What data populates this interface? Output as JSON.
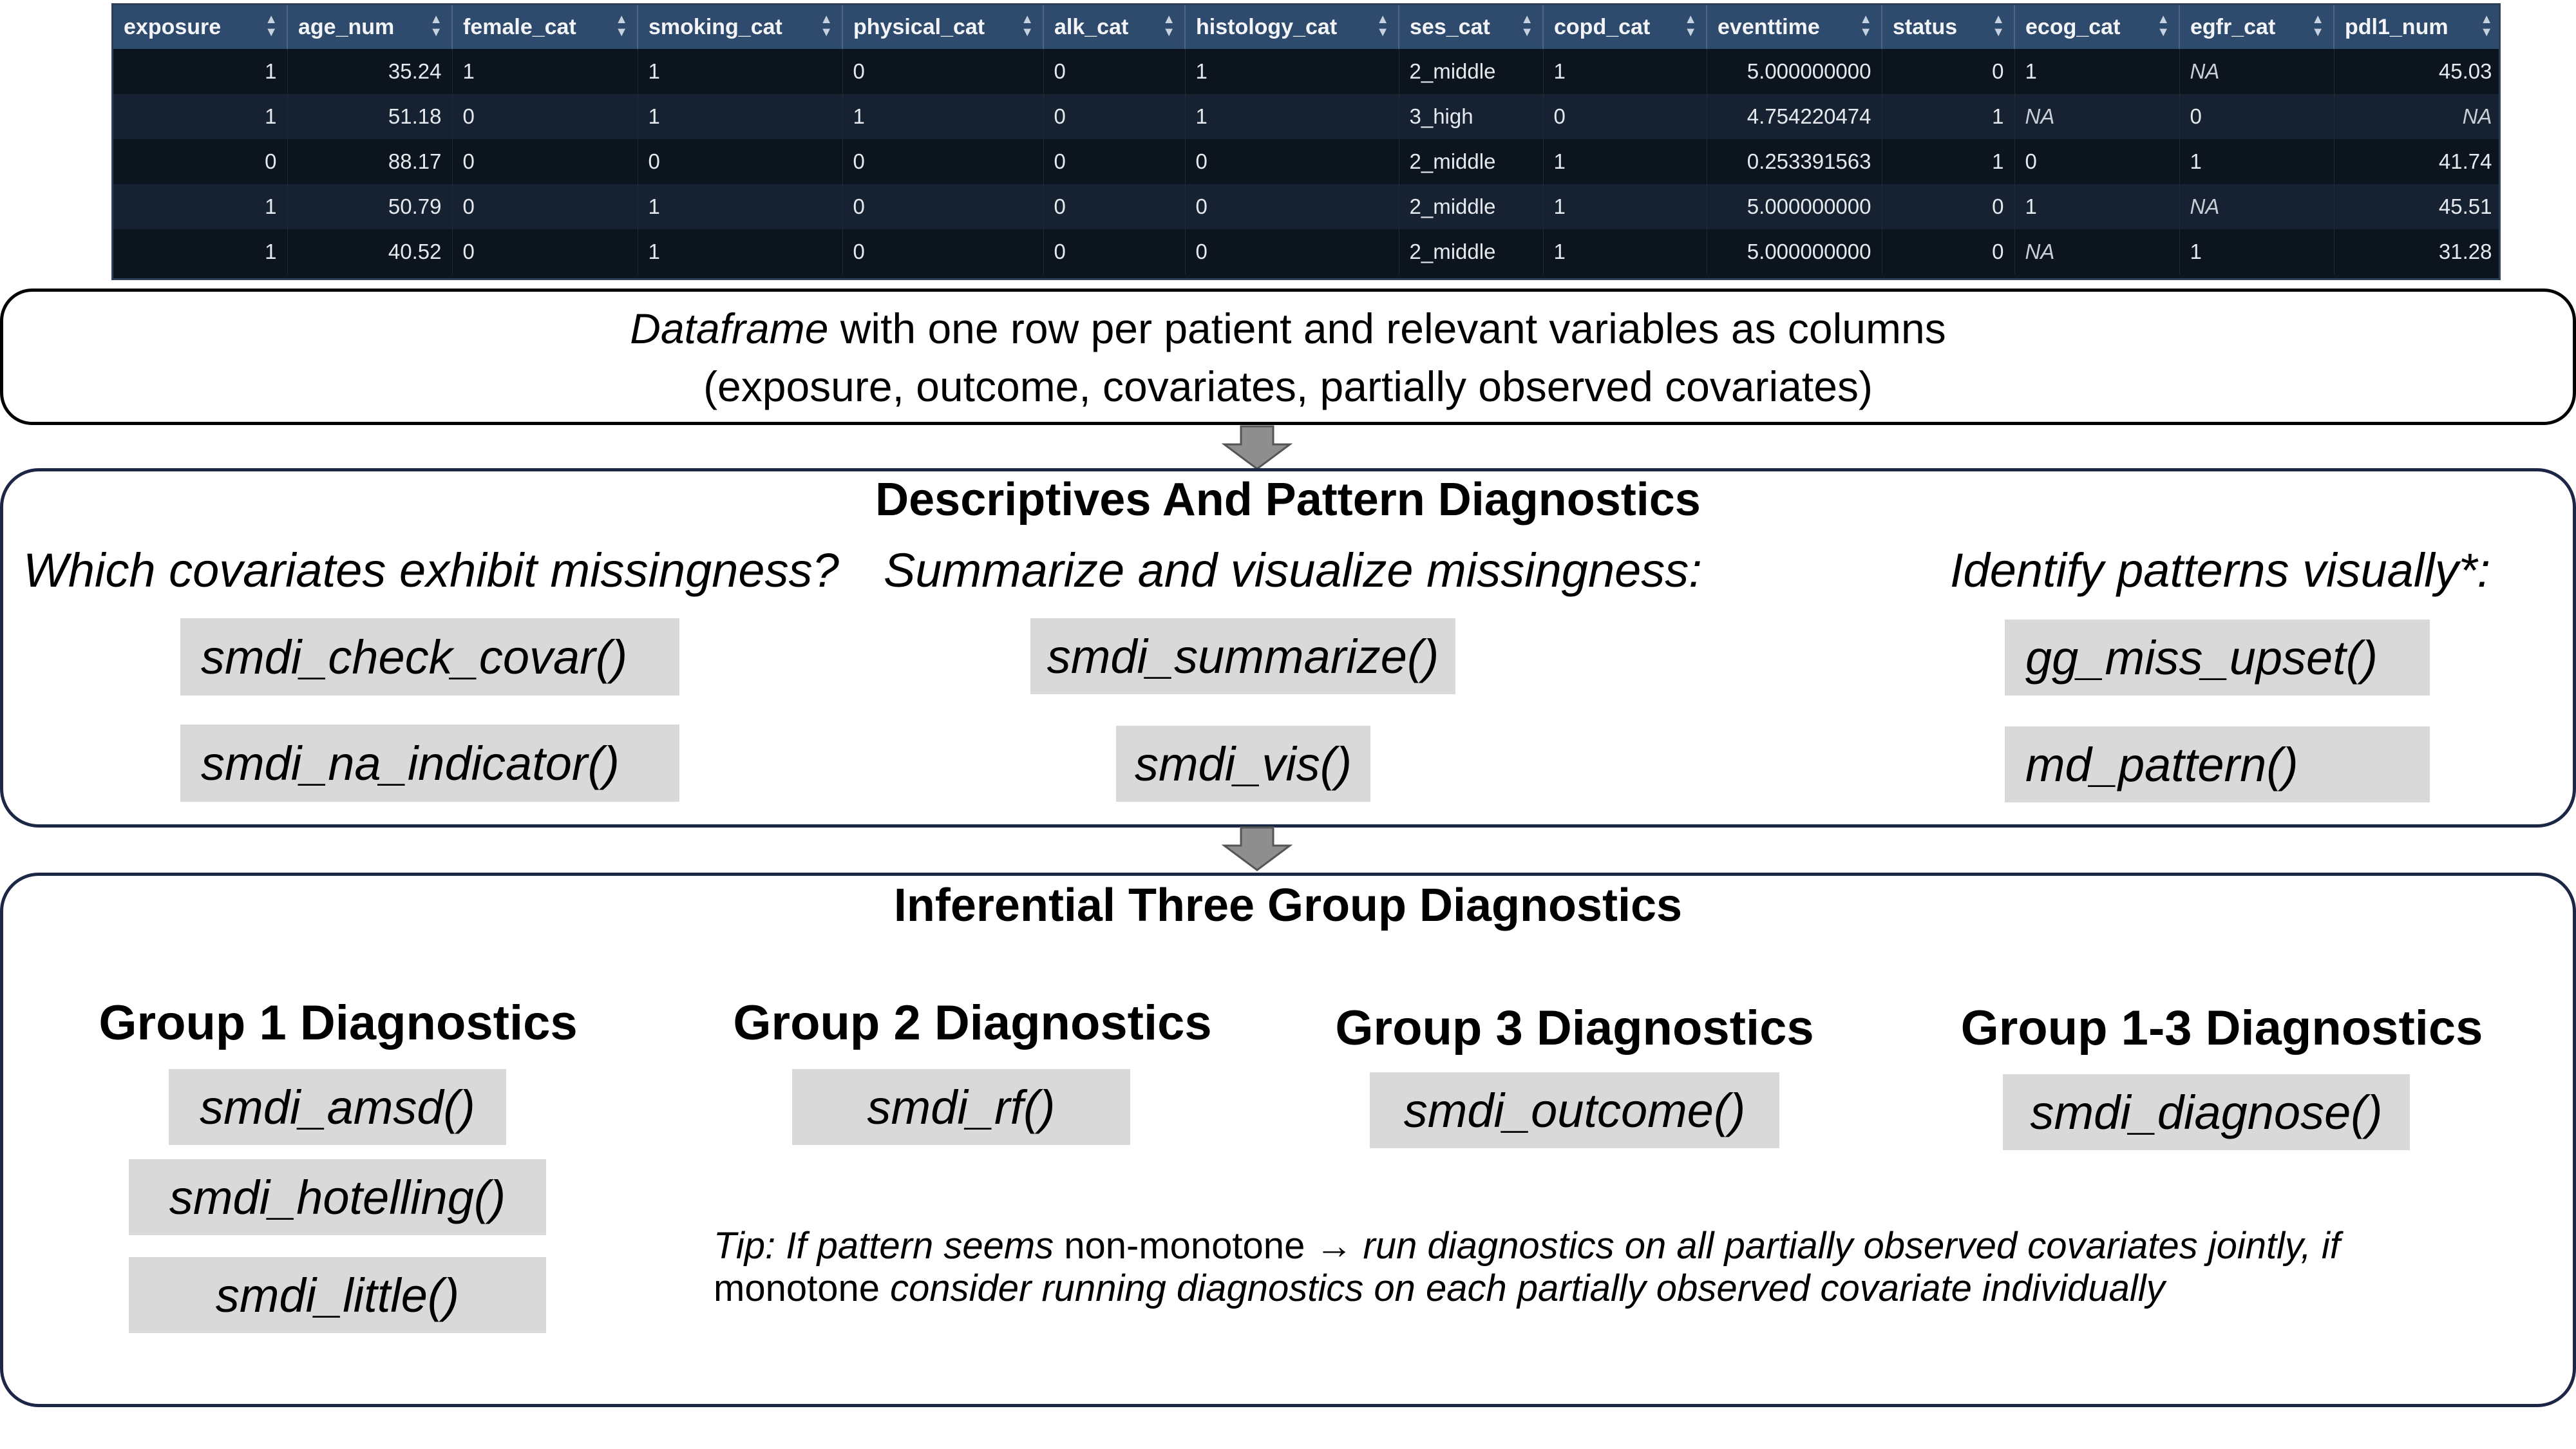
{
  "table": {
    "columns": [
      "exposure",
      "age_num",
      "female_cat",
      "smoking_cat",
      "physical_cat",
      "alk_cat",
      "histology_cat",
      "ses_cat",
      "copd_cat",
      "eventtime",
      "status",
      "ecog_cat",
      "egfr_cat",
      "pdl1_num"
    ],
    "rows": [
      [
        "1",
        "35.24",
        "1",
        "1",
        "0",
        "0",
        "1",
        "2_middle",
        "1",
        "5.000000000",
        "0",
        "1",
        "NA",
        "45.03"
      ],
      [
        "1",
        "51.18",
        "0",
        "1",
        "1",
        "0",
        "1",
        "3_high",
        "0",
        "4.754220474",
        "1",
        "NA",
        "0",
        "NA"
      ],
      [
        "0",
        "88.17",
        "0",
        "0",
        "0",
        "0",
        "0",
        "2_middle",
        "1",
        "0.253391563",
        "1",
        "0",
        "1",
        "41.74"
      ],
      [
        "1",
        "50.79",
        "0",
        "1",
        "0",
        "0",
        "0",
        "2_middle",
        "1",
        "5.000000000",
        "0",
        "1",
        "NA",
        "45.51"
      ],
      [
        "1",
        "40.52",
        "0",
        "1",
        "0",
        "0",
        "0",
        "2_middle",
        "1",
        "5.000000000",
        "0",
        "NA",
        "1",
        "31.28"
      ]
    ]
  },
  "dataframe_box": {
    "line1_emph": "Dataframe",
    "line1_rest": " with one row per patient and relevant variables as columns",
    "line2": "(exposure, outcome, covariates, partially observed covariates)"
  },
  "descriptives": {
    "title": "Descriptives And Pattern Diagnostics",
    "q1": "Which covariates exhibit missingness?",
    "q2": "Summarize and visualize missingness:",
    "q3": "Identify patterns visually*:",
    "fn_check_covar": "smdi_check_covar()",
    "fn_na_indicator": "smdi_na_indicator()",
    "fn_summarize": "smdi_summarize()",
    "fn_vis": "smdi_vis()",
    "fn_upset": "gg_miss_upset()",
    "fn_md_pattern": "md_pattern()"
  },
  "inferential": {
    "title": "Inferential Three Group Diagnostics",
    "g1_title": "Group 1 Diagnostics",
    "g2_title": "Group 2 Diagnostics",
    "g3_title": "Group 3 Diagnostics",
    "g13_title": "Group 1-3 Diagnostics",
    "fn_amsd": "smdi_amsd()",
    "fn_hotelling": "smdi_hotelling()",
    "fn_little": "smdi_little()",
    "fn_rf": "smdi_rf()",
    "fn_outcome": "smdi_outcome()",
    "fn_diagnose": "smdi_diagnose()",
    "tip_a": "Tip: If pattern seems ",
    "tip_b": "non-monotone",
    "tip_c": " → run diagnostics on all partially observed covariates jointly, if",
    "tip_d": "monotone",
    "tip_e": " consider running diagnostics on each partially observed covariate individually"
  }
}
